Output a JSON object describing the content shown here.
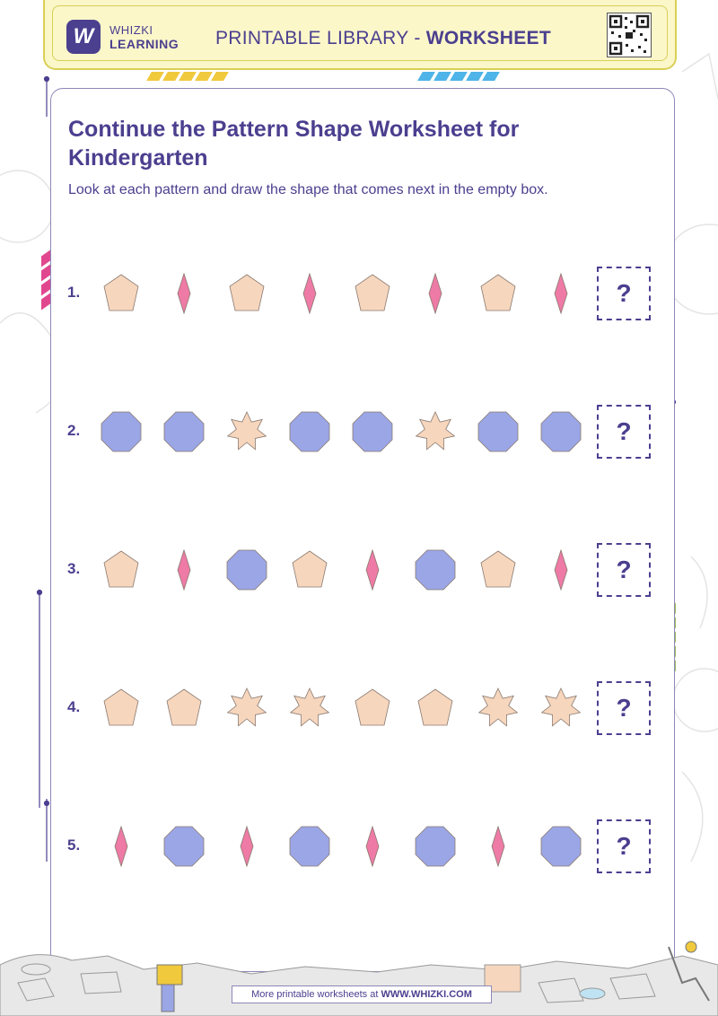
{
  "header": {
    "logo_mark": "W",
    "brand_line1": "WHIZKI",
    "brand_line2": "LEARNING",
    "title_prefix": "PRINTABLE LIBRARY - ",
    "title_bold": "WORKSHEET"
  },
  "worksheet": {
    "title": "Continue the Pattern Shape Worksheet for Kindergarten",
    "instructions": "Look at each pattern and draw the shape that comes next in the empty box.",
    "answer_mark": "?",
    "rows": [
      {
        "number": "1.",
        "shapes": [
          "pentagon",
          "diamond",
          "pentagon",
          "diamond",
          "pentagon",
          "diamond",
          "pentagon",
          "diamond"
        ]
      },
      {
        "number": "2.",
        "shapes": [
          "octagon",
          "octagon",
          "star",
          "octagon",
          "octagon",
          "star",
          "octagon",
          "octagon"
        ]
      },
      {
        "number": "3.",
        "shapes": [
          "pentagon",
          "diamond",
          "octagon",
          "pentagon",
          "diamond",
          "octagon",
          "pentagon",
          "diamond"
        ]
      },
      {
        "number": "4.",
        "shapes": [
          "pentagon",
          "pentagon",
          "star",
          "star",
          "pentagon",
          "pentagon",
          "star",
          "star"
        ]
      },
      {
        "number": "5.",
        "shapes": [
          "diamond",
          "octagon",
          "diamond",
          "octagon",
          "diamond",
          "octagon",
          "diamond",
          "octagon"
        ]
      }
    ]
  },
  "footer": {
    "prefix": "More printable worksheets at ",
    "link": "WWW.WHIZKI.COM"
  },
  "colors": {
    "brand_purple": "#4b3f8f",
    "pentagon": "#f6d6bd",
    "star": "#f6d6bd",
    "diamond": "#ee7aa6",
    "octagon": "#9aa6e6",
    "header_bg": "#fbf7c9"
  }
}
